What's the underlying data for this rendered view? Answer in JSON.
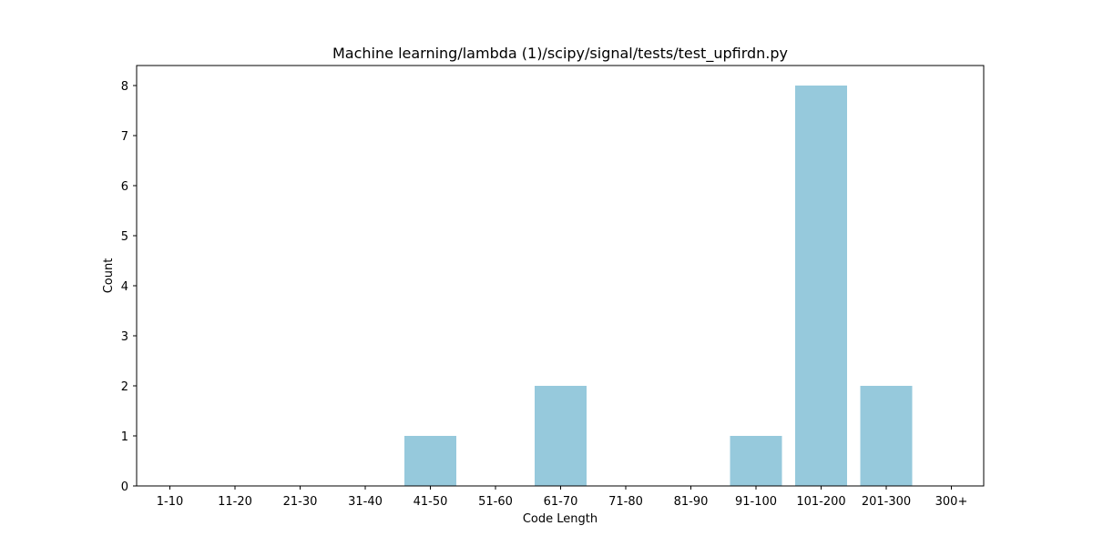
{
  "chart_data": {
    "type": "bar",
    "title": "Machine learning/lambda (1)/scipy/signal/tests/test_upfirdn.py",
    "xlabel": "Code Length",
    "ylabel": "Count",
    "categories": [
      "1-10",
      "11-20",
      "21-30",
      "31-40",
      "41-50",
      "51-60",
      "61-70",
      "71-80",
      "81-90",
      "91-100",
      "101-200",
      "201-300",
      "300+"
    ],
    "values": [
      0,
      0,
      0,
      0,
      1,
      0,
      2,
      0,
      0,
      1,
      8,
      2,
      0
    ],
    "ylim": [
      0,
      8.4
    ],
    "yticks": [
      0,
      1,
      2,
      3,
      4,
      5,
      6,
      7,
      8
    ],
    "bar_color": "#96c9dc",
    "grid": false,
    "legend": "none"
  }
}
